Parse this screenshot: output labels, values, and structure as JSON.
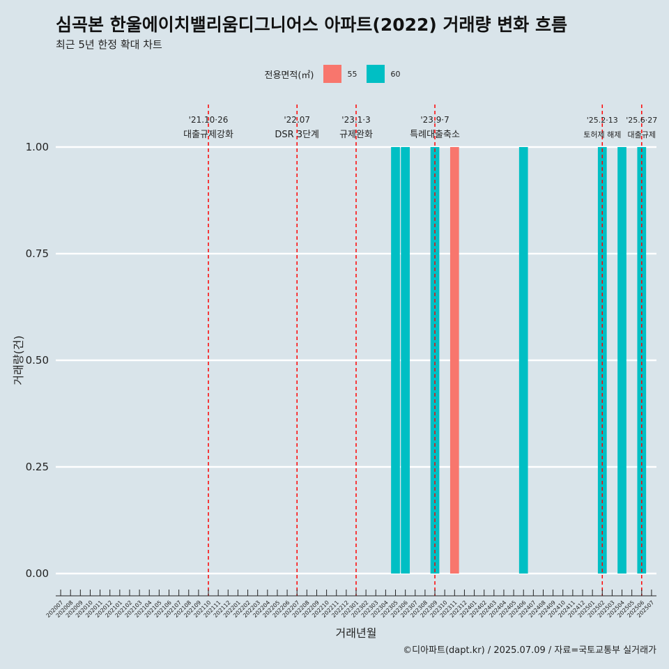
{
  "title": "심곡본 한울에이치밸리움디그니어스 아파트(2022) 거래량 변화 흐름",
  "subtitle": "최근 5년 한정 확대 차트",
  "caption": "©디아파트(dapt.kr) / 2025.07.09 / 자료=국토교통부 실거래가",
  "legend": {
    "title": "전용면적(㎡)",
    "items": [
      {
        "label": "55",
        "color": "#F8766D"
      },
      {
        "label": "60",
        "color": "#00BFC4"
      }
    ]
  },
  "chart_data": {
    "type": "bar",
    "xlabel": "거래년월",
    "ylabel": "거래량(건)",
    "ylim": [
      0,
      1
    ],
    "yticks": [
      "0.00",
      "0.25",
      "0.50",
      "0.75",
      "1.00"
    ],
    "grid": true,
    "legend_position": "top",
    "categories": [
      "202007",
      "202008",
      "202009",
      "202010",
      "202011",
      "202012",
      "202101",
      "202102",
      "202103",
      "202104",
      "202105",
      "202106",
      "202107",
      "202108",
      "202109",
      "202110",
      "202111",
      "202112",
      "202201",
      "202202",
      "202203",
      "202204",
      "202205",
      "202206",
      "202207",
      "202208",
      "202209",
      "202210",
      "202211",
      "202212",
      "202301",
      "202302",
      "202303",
      "202304",
      "202305",
      "202306",
      "202307",
      "202308",
      "202309",
      "202310",
      "202311",
      "202312",
      "202401",
      "202402",
      "202403",
      "202404",
      "202405",
      "202406",
      "202407",
      "202408",
      "202409",
      "202410",
      "202411",
      "202412",
      "202501",
      "202502",
      "202503",
      "202504",
      "202505",
      "202506",
      "202507"
    ],
    "series": [
      {
        "name": "55",
        "color": "#F8766D",
        "points": [
          {
            "x": "202311",
            "y": 1
          }
        ]
      },
      {
        "name": "60",
        "color": "#00BFC4",
        "points": [
          {
            "x": "202305",
            "y": 1
          },
          {
            "x": "202306",
            "y": 1
          },
          {
            "x": "202309",
            "y": 1
          },
          {
            "x": "202406",
            "y": 1
          },
          {
            "x": "202502",
            "y": 1
          },
          {
            "x": "202504",
            "y": 1
          },
          {
            "x": "202506",
            "y": 1
          }
        ]
      }
    ],
    "events": [
      {
        "x": "202110",
        "date": "'21.10·26",
        "label": "대출규제강화",
        "color": "#ff0000"
      },
      {
        "x": "202207",
        "date": "'22.07",
        "label": "DSR 3단계",
        "color": "#ff0000"
      },
      {
        "x": "202301",
        "date": "'23.1·3",
        "label": "규제완화",
        "color": "#ff0000"
      },
      {
        "x": "202309",
        "date": "'23.9·7",
        "label": "특례대출축소",
        "color": "#ff0000"
      },
      {
        "x": "202502",
        "date": "'25.2·13",
        "label": "토허제 해제",
        "color": "#ff0000"
      },
      {
        "x": "202506",
        "date": "'25.6·27",
        "label": "대출규제",
        "color": "#ff0000"
      }
    ]
  }
}
